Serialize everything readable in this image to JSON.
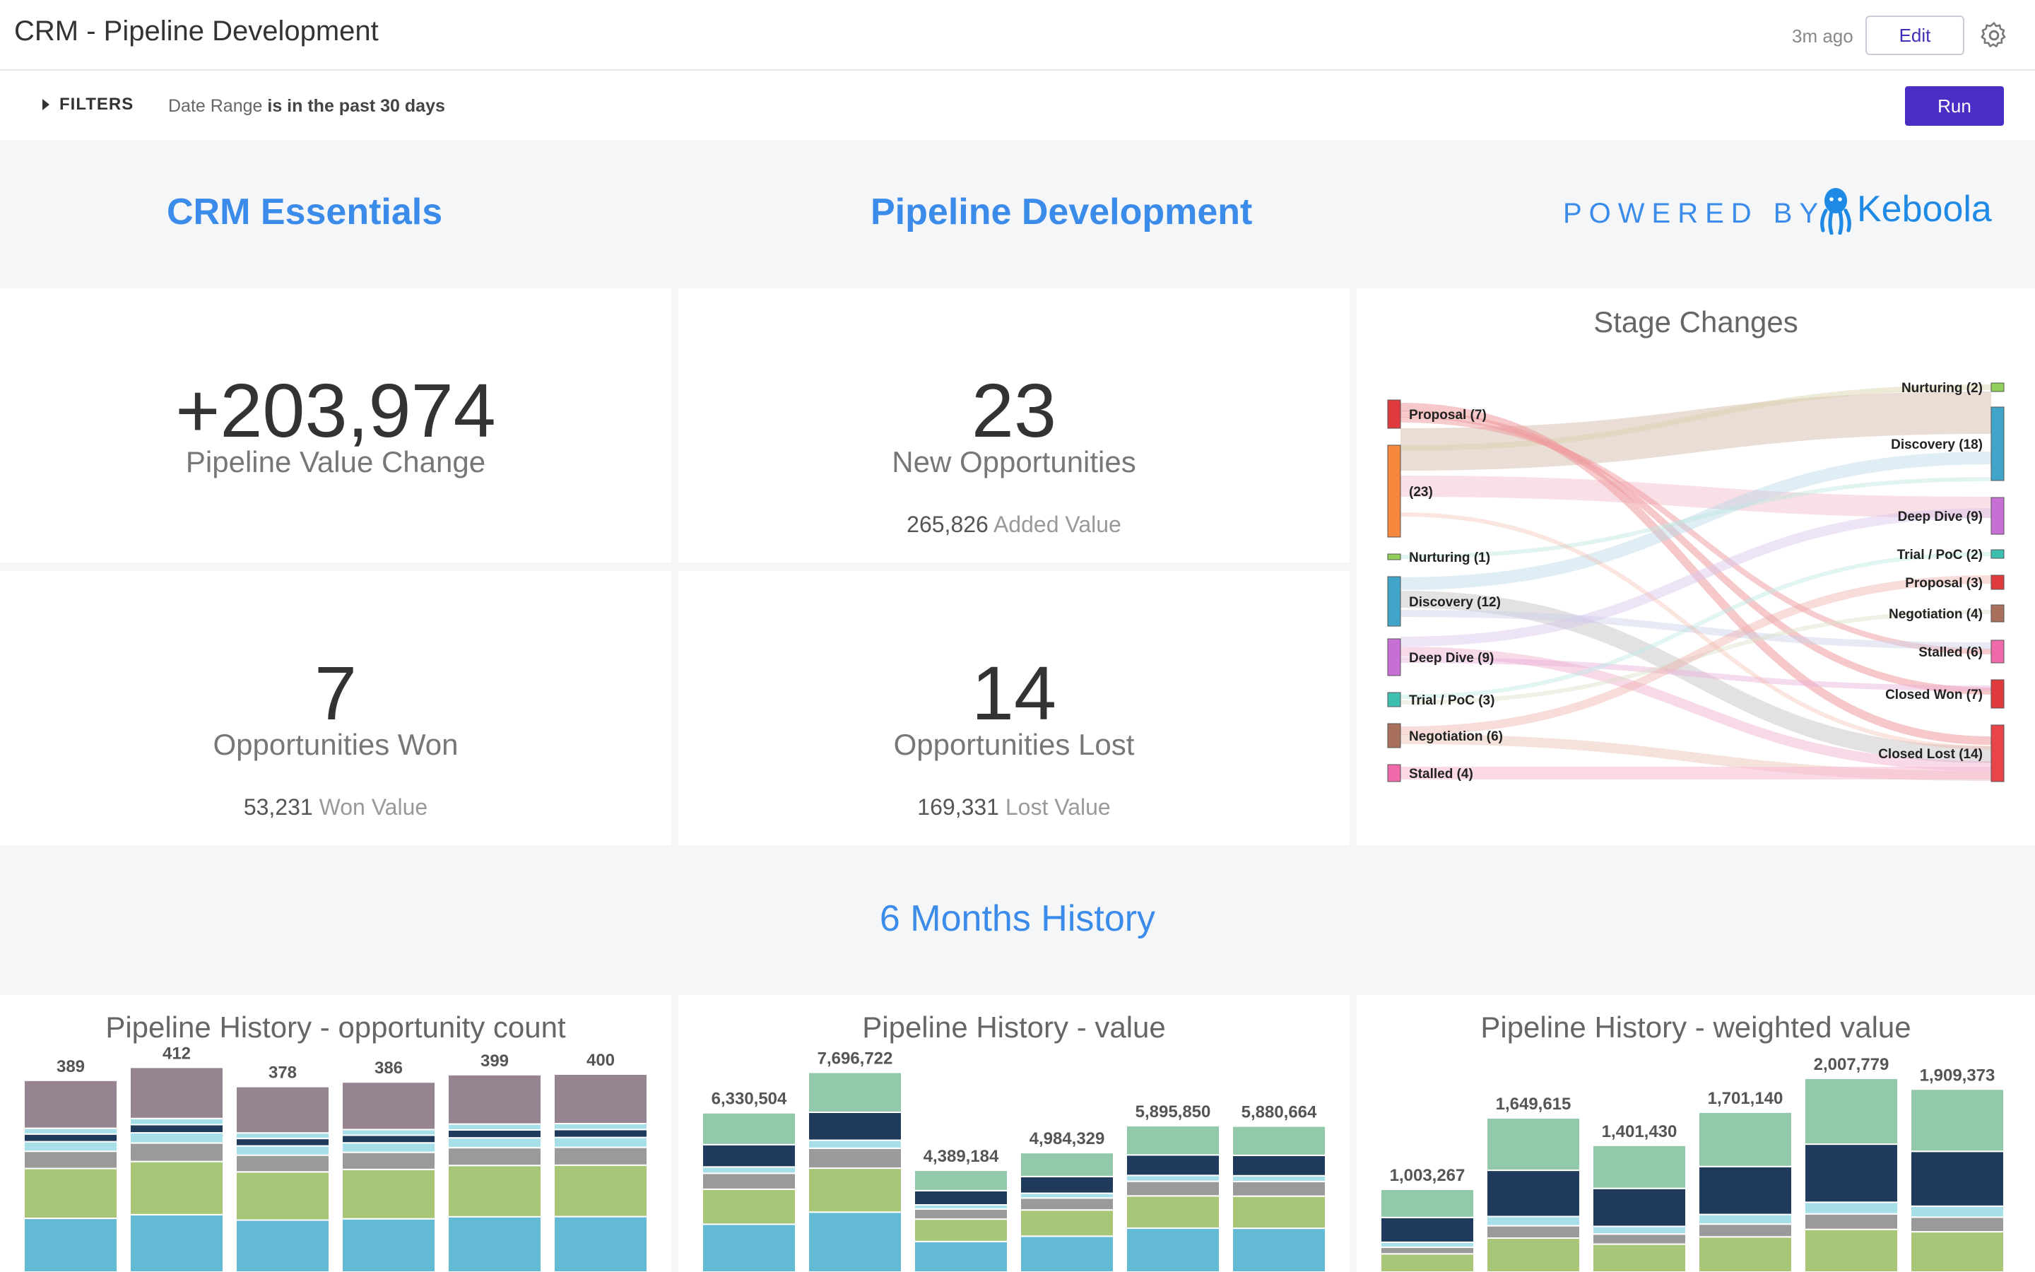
{
  "header": {
    "title": "CRM - Pipeline Development",
    "updated": "3m ago",
    "edit_label": "Edit"
  },
  "filters": {
    "toggle_label": "FILTERS",
    "field": "Date Range",
    "condition": "is in the past 30 days",
    "run_label": "Run"
  },
  "headings": {
    "left": "CRM Essentials",
    "center": "Pipeline Development",
    "powered_by": "POWERED BY",
    "brand": "Keboola",
    "history": "6 Months History"
  },
  "kpis": {
    "pipeline_value": {
      "value": "+203,974",
      "label": "Pipeline Value Change"
    },
    "new_opps": {
      "value": "23",
      "label": "New Opportunities",
      "sub_value": "265,826",
      "sub_label": "Added Value"
    },
    "won": {
      "value": "7",
      "label": "Opportunities Won",
      "sub_value": "53,231",
      "sub_label": "Won Value"
    },
    "lost": {
      "value": "14",
      "label": "Opportunities Lost",
      "sub_value": "169,331",
      "sub_label": "Lost Value"
    }
  },
  "colors": {
    "accent": "#3b8bea",
    "run": "#4a2ec4",
    "proposal": "#e0393e",
    "new": "#f5883c",
    "nurturing": "#8fcf5a",
    "discovery": "#41a5c9",
    "deepdive": "#c86fd6",
    "trial": "#3dbfb0",
    "negotiation": "#a8705a",
    "stalled": "#f06aa9",
    "closedwon": "#e0393e",
    "closedlost": "#e8444a",
    "hist_blue": "#63bad5",
    "hist_green": "#a8c677",
    "hist_grey": "#9a9a9a",
    "hist_light": "#a7dfe8",
    "hist_navy": "#1f3a5a",
    "hist_mauve": "#968490",
    "hist_mint": "#92c9ab"
  },
  "sankey": {
    "title": "Stage Changes",
    "left_nodes": [
      {
        "label": "Proposal (7)",
        "color": "#e0393e",
        "value": 7
      },
      {
        "label": "(23)",
        "color": "#f5883c",
        "value": 23
      },
      {
        "label": "Nurturing (1)",
        "color": "#8fcf5a",
        "value": 1
      },
      {
        "label": "Discovery (12)",
        "color": "#41a5c9",
        "value": 12
      },
      {
        "label": "Deep Dive (9)",
        "color": "#c86fd6",
        "value": 9
      },
      {
        "label": "Trial / PoC (3)",
        "color": "#3dbfb0",
        "value": 3
      },
      {
        "label": "Negotiation (6)",
        "color": "#a8705a",
        "value": 6
      },
      {
        "label": "Stalled (4)",
        "color": "#f06aa9",
        "value": 4
      }
    ],
    "right_nodes": [
      {
        "label": "Nurturing (2)",
        "color": "#8fcf5a",
        "value": 2
      },
      {
        "label": "Discovery (18)",
        "color": "#41a5c9",
        "value": 18
      },
      {
        "label": "Deep Dive (9)",
        "color": "#c86fd6",
        "value": 9
      },
      {
        "label": "Trial / PoC (2)",
        "color": "#3dbfb0",
        "value": 2
      },
      {
        "label": "Proposal (3)",
        "color": "#e0393e",
        "value": 3
      },
      {
        "label": "Negotiation (4)",
        "color": "#a8705a",
        "value": 4
      },
      {
        "label": "Stalled (6)",
        "color": "#f06aa9",
        "value": 6
      },
      {
        "label": "Closed Won (7)",
        "color": "#e0393e",
        "value": 7
      },
      {
        "label": "Closed Lost (14)",
        "color": "#e8444a",
        "value": 14
      }
    ]
  },
  "chart_data": [
    {
      "type": "bar",
      "title": "Pipeline History - opportunity count",
      "totals": [
        "389",
        "412",
        "378",
        "386",
        "399",
        "400"
      ],
      "values": [
        389,
        412,
        378,
        386,
        399,
        400
      ],
      "ylim": [
        0,
        440
      ]
    },
    {
      "type": "bar",
      "title": "Pipeline History - value",
      "totals": [
        "6,330,504",
        "7,696,722",
        "4,389,184",
        "4,984,329",
        "5,895,850",
        "5,880,664"
      ],
      "values": [
        6330504,
        7696722,
        4389184,
        4984329,
        5895850,
        5880664
      ],
      "ylim": [
        0,
        8400000
      ]
    },
    {
      "type": "bar",
      "title": "Pipeline History - weighted value",
      "totals": [
        "1,003,267",
        "1,649,615",
        "1,401,430",
        "1,701,140",
        "2,007,779",
        "1,909,373"
      ],
      "values": [
        1003267,
        1649615,
        1401430,
        1701140,
        2007779,
        1909373
      ],
      "ylim": [
        0,
        2250000
      ]
    }
  ]
}
